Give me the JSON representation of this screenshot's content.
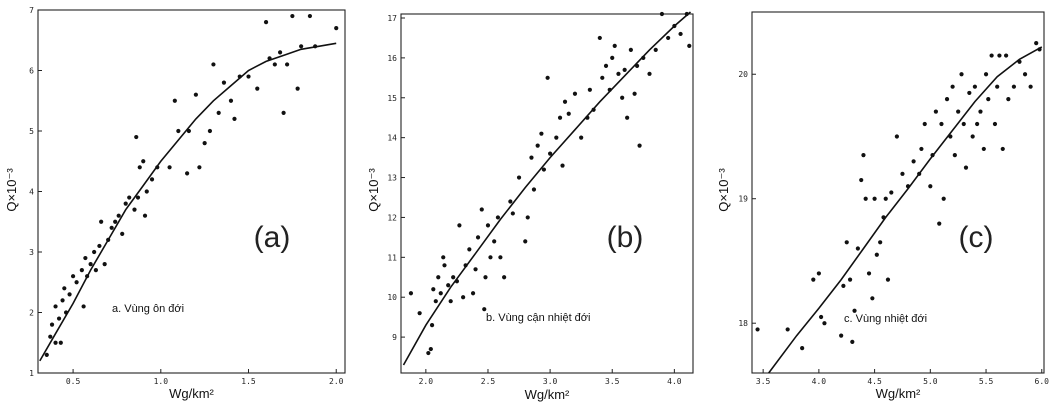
{
  "chart_data": [
    {
      "type": "scatter",
      "panel_tag": "(a)",
      "caption": "a. Vùng ôn đới",
      "xlabel": "Wg/km²",
      "ylabel": "Q×10⁻³",
      "xlim": [
        0.3,
        2.05
      ],
      "ylim": [
        1,
        7
      ],
      "xticks": [
        {
          "v": 0.5,
          "t": "0.5"
        },
        {
          "v": 1.0,
          "t": "1.0"
        },
        {
          "v": 1.5,
          "t": "1.5"
        },
        {
          "v": 2.0,
          "t": "2.0"
        }
      ],
      "yticks": [
        {
          "v": 1,
          "t": "1"
        },
        {
          "v": 2,
          "t": "2"
        },
        {
          "v": 3,
          "t": "3"
        },
        {
          "v": 4,
          "t": "4"
        },
        {
          "v": 5,
          "t": "5"
        },
        {
          "v": 6,
          "t": "6"
        },
        {
          "v": 7,
          "t": "7"
        }
      ],
      "points": [
        [
          0.35,
          1.3
        ],
        [
          0.37,
          1.6
        ],
        [
          0.38,
          1.8
        ],
        [
          0.4,
          1.5
        ],
        [
          0.4,
          2.1
        ],
        [
          0.42,
          1.9
        ],
        [
          0.43,
          1.5
        ],
        [
          0.44,
          2.2
        ],
        [
          0.45,
          2.4
        ],
        [
          0.46,
          2.0
        ],
        [
          0.48,
          2.3
        ],
        [
          0.5,
          2.6
        ],
        [
          0.52,
          2.5
        ],
        [
          0.55,
          2.7
        ],
        [
          0.56,
          2.1
        ],
        [
          0.57,
          2.9
        ],
        [
          0.58,
          2.6
        ],
        [
          0.6,
          2.8
        ],
        [
          0.62,
          3.0
        ],
        [
          0.63,
          2.7
        ],
        [
          0.65,
          3.1
        ],
        [
          0.66,
          3.5
        ],
        [
          0.68,
          2.8
        ],
        [
          0.7,
          3.2
        ],
        [
          0.72,
          3.4
        ],
        [
          0.74,
          3.5
        ],
        [
          0.76,
          3.6
        ],
        [
          0.78,
          3.3
        ],
        [
          0.8,
          3.8
        ],
        [
          0.82,
          3.9
        ],
        [
          0.85,
          3.7
        ],
        [
          0.86,
          4.9
        ],
        [
          0.87,
          3.9
        ],
        [
          0.88,
          4.4
        ],
        [
          0.9,
          4.5
        ],
        [
          0.91,
          3.6
        ],
        [
          0.92,
          4.0
        ],
        [
          0.95,
          4.2
        ],
        [
          0.98,
          4.4
        ],
        [
          1.05,
          4.4
        ],
        [
          1.08,
          5.5
        ],
        [
          1.1,
          5.0
        ],
        [
          1.15,
          4.3
        ],
        [
          1.16,
          5.0
        ],
        [
          1.2,
          5.6
        ],
        [
          1.22,
          4.4
        ],
        [
          1.25,
          4.8
        ],
        [
          1.28,
          5.0
        ],
        [
          1.3,
          6.1
        ],
        [
          1.33,
          5.3
        ],
        [
          1.36,
          5.8
        ],
        [
          1.4,
          5.5
        ],
        [
          1.42,
          5.2
        ],
        [
          1.45,
          5.9
        ],
        [
          1.5,
          5.9
        ],
        [
          1.55,
          5.7
        ],
        [
          1.6,
          6.8
        ],
        [
          1.62,
          6.2
        ],
        [
          1.65,
          6.1
        ],
        [
          1.68,
          6.3
        ],
        [
          1.7,
          5.3
        ],
        [
          1.72,
          6.1
        ],
        [
          1.75,
          6.9
        ],
        [
          1.78,
          5.7
        ],
        [
          1.8,
          6.4
        ],
        [
          1.85,
          6.9
        ],
        [
          1.88,
          6.4
        ],
        [
          2.0,
          6.7
        ]
      ],
      "fit": [
        [
          0.31,
          1.2
        ],
        [
          0.4,
          1.65
        ],
        [
          0.5,
          2.15
        ],
        [
          0.6,
          2.7
        ],
        [
          0.7,
          3.2
        ],
        [
          0.8,
          3.7
        ],
        [
          0.9,
          4.1
        ],
        [
          1.0,
          4.5
        ],
        [
          1.1,
          4.85
        ],
        [
          1.2,
          5.2
        ],
        [
          1.3,
          5.5
        ],
        [
          1.4,
          5.75
        ],
        [
          1.5,
          6.0
        ],
        [
          1.6,
          6.15
        ],
        [
          1.7,
          6.25
        ],
        [
          1.8,
          6.35
        ],
        [
          1.9,
          6.4
        ],
        [
          2.0,
          6.45
        ]
      ]
    },
    {
      "type": "scatter",
      "panel_tag": "(b)",
      "caption": "b. Vùng cận nhiệt đới",
      "xlabel": "Wg/km²",
      "ylabel": "Q×10⁻³",
      "xlim": [
        1.8,
        4.15
      ],
      "ylim": [
        8.1,
        17.1
      ],
      "xticks": [
        {
          "v": 2.0,
          "t": "2.0"
        },
        {
          "v": 2.5,
          "t": "2.5"
        },
        {
          "v": 3.0,
          "t": "3.0"
        },
        {
          "v": 3.5,
          "t": "3.5"
        },
        {
          "v": 4.0,
          "t": "4.0"
        }
      ],
      "yticks": [
        {
          "v": 9,
          "t": "9"
        },
        {
          "v": 10,
          "t": "10"
        },
        {
          "v": 11,
          "t": "11"
        },
        {
          "v": 12,
          "t": "12"
        },
        {
          "v": 13,
          "t": "13"
        },
        {
          "v": 14,
          "t": "14"
        },
        {
          "v": 15,
          "t": "15"
        },
        {
          "v": 16,
          "t": "16"
        },
        {
          "v": 17,
          "t": "17"
        }
      ],
      "points": [
        [
          1.88,
          10.1
        ],
        [
          1.95,
          9.6
        ],
        [
          2.02,
          8.6
        ],
        [
          2.04,
          8.7
        ],
        [
          2.05,
          9.3
        ],
        [
          2.06,
          10.2
        ],
        [
          2.08,
          9.9
        ],
        [
          2.1,
          10.5
        ],
        [
          2.12,
          10.1
        ],
        [
          2.14,
          11.0
        ],
        [
          2.15,
          10.8
        ],
        [
          2.18,
          10.3
        ],
        [
          2.2,
          9.9
        ],
        [
          2.22,
          10.5
        ],
        [
          2.25,
          10.4
        ],
        [
          2.27,
          11.8
        ],
        [
          2.3,
          10.0
        ],
        [
          2.32,
          10.8
        ],
        [
          2.35,
          11.2
        ],
        [
          2.38,
          10.1
        ],
        [
          2.4,
          10.7
        ],
        [
          2.42,
          11.5
        ],
        [
          2.45,
          12.2
        ],
        [
          2.47,
          9.7
        ],
        [
          2.48,
          10.5
        ],
        [
          2.5,
          11.8
        ],
        [
          2.52,
          11.0
        ],
        [
          2.55,
          11.4
        ],
        [
          2.58,
          12.0
        ],
        [
          2.6,
          11.0
        ],
        [
          2.63,
          10.5
        ],
        [
          2.68,
          12.4
        ],
        [
          2.7,
          12.1
        ],
        [
          2.75,
          13.0
        ],
        [
          2.8,
          11.4
        ],
        [
          2.82,
          12.0
        ],
        [
          2.85,
          13.5
        ],
        [
          2.87,
          12.7
        ],
        [
          2.9,
          13.8
        ],
        [
          2.93,
          14.1
        ],
        [
          2.95,
          13.2
        ],
        [
          2.98,
          15.5
        ],
        [
          3.0,
          13.6
        ],
        [
          3.05,
          14.0
        ],
        [
          3.08,
          14.5
        ],
        [
          3.1,
          13.3
        ],
        [
          3.12,
          14.9
        ],
        [
          3.15,
          14.6
        ],
        [
          3.2,
          15.1
        ],
        [
          3.25,
          14.0
        ],
        [
          3.3,
          14.5
        ],
        [
          3.32,
          15.2
        ],
        [
          3.35,
          14.7
        ],
        [
          3.4,
          16.5
        ],
        [
          3.42,
          15.5
        ],
        [
          3.45,
          15.8
        ],
        [
          3.48,
          15.2
        ],
        [
          3.5,
          16.0
        ],
        [
          3.52,
          16.3
        ],
        [
          3.55,
          15.6
        ],
        [
          3.58,
          15.0
        ],
        [
          3.6,
          15.7
        ],
        [
          3.62,
          14.5
        ],
        [
          3.65,
          16.2
        ],
        [
          3.68,
          15.1
        ],
        [
          3.7,
          15.8
        ],
        [
          3.72,
          13.8
        ],
        [
          3.75,
          16.0
        ],
        [
          3.8,
          15.6
        ],
        [
          3.85,
          16.2
        ],
        [
          3.9,
          17.1
        ],
        [
          3.95,
          16.5
        ],
        [
          4.0,
          16.8
        ],
        [
          4.05,
          16.6
        ],
        [
          4.1,
          17.1
        ],
        [
          4.12,
          16.3
        ]
      ],
      "fit": [
        [
          1.82,
          8.3
        ],
        [
          2.0,
          9.3
        ],
        [
          2.2,
          10.25
        ],
        [
          2.4,
          11.1
        ],
        [
          2.6,
          11.95
        ],
        [
          2.8,
          12.75
        ],
        [
          3.0,
          13.5
        ],
        [
          3.2,
          14.2
        ],
        [
          3.4,
          14.9
        ],
        [
          3.6,
          15.55
        ],
        [
          3.8,
          16.2
        ],
        [
          4.0,
          16.8
        ],
        [
          4.13,
          17.15
        ]
      ]
    },
    {
      "type": "scatter",
      "panel_tag": "(c)",
      "caption": "c. Vùng nhiệt đới",
      "xlabel": "Wg/km²",
      "ylabel": "Q×10⁻³",
      "xlim": [
        3.4,
        6.02
      ],
      "ylim": [
        17.6,
        20.5
      ],
      "xticks": [
        {
          "v": 3.5,
          "t": "3.5"
        },
        {
          "v": 4.0,
          "t": "4.0"
        },
        {
          "v": 4.5,
          "t": "4.5"
        },
        {
          "v": 5.0,
          "t": "5.0"
        },
        {
          "v": 5.5,
          "t": "5.5"
        },
        {
          "v": 6.0,
          "t": "6.0"
        }
      ],
      "yticks": [
        {
          "v": 18,
          "t": "18"
        },
        {
          "v": 19,
          "t": "19"
        },
        {
          "v": 20,
          "t": "20"
        }
      ],
      "points": [
        [
          3.45,
          17.95
        ],
        [
          3.72,
          17.95
        ],
        [
          3.85,
          17.8
        ],
        [
          3.95,
          18.35
        ],
        [
          4.0,
          18.4
        ],
        [
          4.02,
          18.05
        ],
        [
          4.05,
          18.0
        ],
        [
          4.2,
          17.9
        ],
        [
          4.22,
          18.3
        ],
        [
          4.25,
          18.65
        ],
        [
          4.28,
          18.35
        ],
        [
          4.3,
          17.85
        ],
        [
          4.32,
          18.1
        ],
        [
          4.35,
          18.6
        ],
        [
          4.38,
          19.15
        ],
        [
          4.4,
          19.35
        ],
        [
          4.42,
          19.0
        ],
        [
          4.45,
          18.4
        ],
        [
          4.48,
          18.2
        ],
        [
          4.5,
          19.0
        ],
        [
          4.52,
          18.55
        ],
        [
          4.55,
          18.65
        ],
        [
          4.58,
          18.85
        ],
        [
          4.6,
          19.0
        ],
        [
          4.62,
          18.35
        ],
        [
          4.65,
          19.05
        ],
        [
          4.7,
          19.5
        ],
        [
          4.75,
          19.2
        ],
        [
          4.8,
          19.1
        ],
        [
          4.85,
          19.3
        ],
        [
          4.9,
          19.2
        ],
        [
          4.92,
          19.4
        ],
        [
          4.95,
          19.6
        ],
        [
          5.0,
          19.1
        ],
        [
          5.02,
          19.35
        ],
        [
          5.05,
          19.7
        ],
        [
          5.08,
          18.8
        ],
        [
          5.1,
          19.6
        ],
        [
          5.12,
          19.0
        ],
        [
          5.15,
          19.8
        ],
        [
          5.18,
          19.5
        ],
        [
          5.2,
          19.9
        ],
        [
          5.22,
          19.35
        ],
        [
          5.25,
          19.7
        ],
        [
          5.28,
          20.0
        ],
        [
          5.3,
          19.6
        ],
        [
          5.32,
          19.25
        ],
        [
          5.35,
          19.85
        ],
        [
          5.38,
          19.5
        ],
        [
          5.4,
          19.9
        ],
        [
          5.42,
          19.6
        ],
        [
          5.45,
          19.7
        ],
        [
          5.48,
          19.4
        ],
        [
          5.5,
          20.0
        ],
        [
          5.52,
          19.8
        ],
        [
          5.55,
          20.15
        ],
        [
          5.58,
          19.6
        ],
        [
          5.6,
          19.9
        ],
        [
          5.62,
          20.15
        ],
        [
          5.65,
          19.4
        ],
        [
          5.68,
          20.15
        ],
        [
          5.7,
          19.8
        ],
        [
          5.75,
          19.9
        ],
        [
          5.8,
          20.1
        ],
        [
          5.85,
          20.0
        ],
        [
          5.9,
          19.9
        ],
        [
          5.95,
          20.25
        ],
        [
          5.98,
          20.2
        ]
      ],
      "fit": [
        [
          3.55,
          17.6
        ],
        [
          3.8,
          17.9
        ],
        [
          4.0,
          18.12
        ],
        [
          4.2,
          18.35
        ],
        [
          4.4,
          18.6
        ],
        [
          4.6,
          18.85
        ],
        [
          4.8,
          19.08
        ],
        [
          5.0,
          19.32
        ],
        [
          5.2,
          19.55
        ],
        [
          5.4,
          19.78
        ],
        [
          5.6,
          19.98
        ],
        [
          5.8,
          20.12
        ],
        [
          6.0,
          20.22
        ]
      ]
    }
  ]
}
